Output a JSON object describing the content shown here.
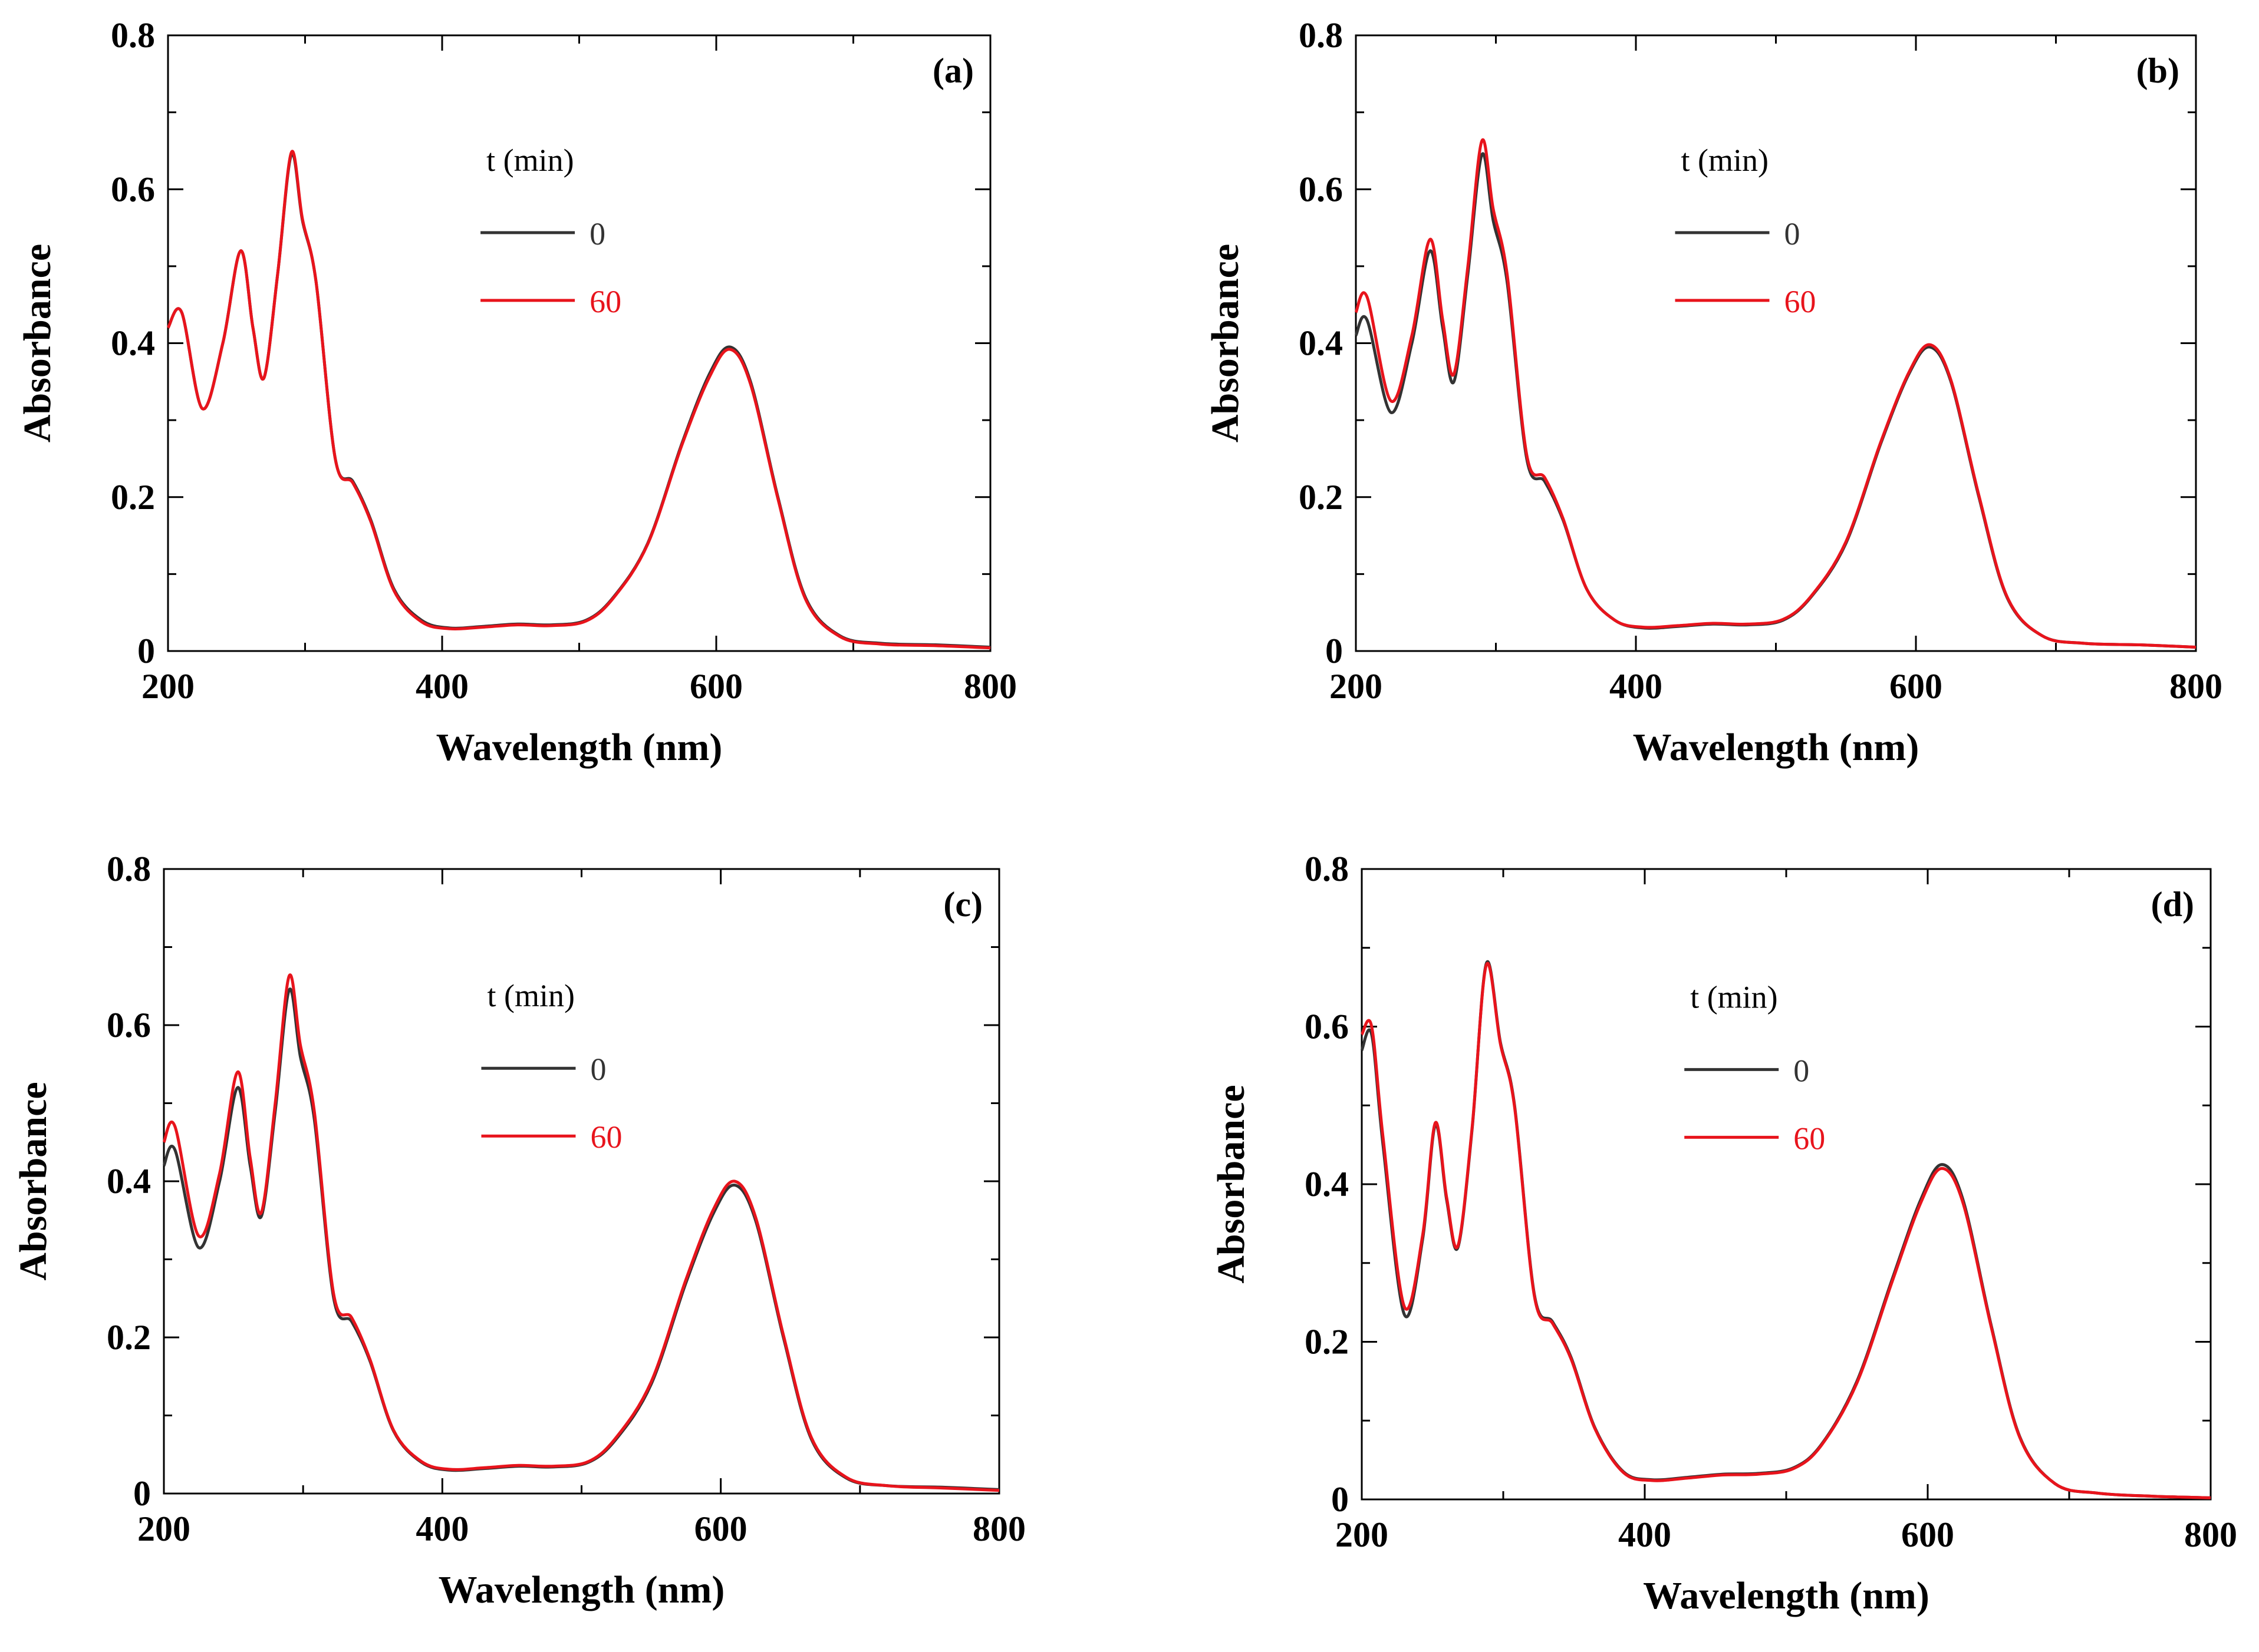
{
  "chart_data": [
    {
      "type": "line",
      "panel_label": "(a)",
      "xlabel": "Wavelength (nm)",
      "ylabel": "Absorbance",
      "xlim": [
        200,
        800
      ],
      "ylim": [
        0,
        0.8
      ],
      "xticks": [
        200,
        400,
        600,
        800
      ],
      "xtick_labels": [
        "200",
        "400",
        "600",
        "800"
      ],
      "yticks": [
        0,
        0.2,
        0.4,
        0.6,
        0.8
      ],
      "ytick_labels": [
        "0",
        "0.2",
        "0.4",
        "0.6",
        "0.8"
      ],
      "legend_title": "t (min)",
      "legend_position": "upper-middle",
      "series": [
        {
          "name": "0",
          "color": "#333333",
          "x": [
            200,
            210,
            225,
            240,
            253,
            262,
            270,
            280,
            290,
            298,
            308,
            322,
            335,
            348,
            365,
            385,
            405,
            430,
            455,
            480,
            505,
            525,
            550,
            575,
            595,
            610,
            625,
            645,
            665,
            690,
            720,
            760,
            800
          ],
          "y": [
            0.42,
            0.44,
            0.315,
            0.4,
            0.52,
            0.42,
            0.355,
            0.49,
            0.645,
            0.56,
            0.48,
            0.25,
            0.22,
            0.17,
            0.08,
            0.04,
            0.03,
            0.032,
            0.035,
            0.034,
            0.04,
            0.07,
            0.14,
            0.27,
            0.36,
            0.395,
            0.35,
            0.2,
            0.07,
            0.02,
            0.01,
            0.008,
            0.005
          ]
        },
        {
          "name": "60",
          "color": "#e8141c",
          "x": [
            200,
            210,
            225,
            240,
            253,
            262,
            270,
            280,
            290,
            298,
            308,
            322,
            335,
            348,
            365,
            385,
            405,
            430,
            455,
            480,
            505,
            525,
            550,
            575,
            595,
            610,
            625,
            645,
            665,
            690,
            720,
            760,
            800
          ],
          "y": [
            0.42,
            0.44,
            0.315,
            0.4,
            0.52,
            0.42,
            0.355,
            0.49,
            0.648,
            0.562,
            0.48,
            0.25,
            0.218,
            0.168,
            0.078,
            0.038,
            0.029,
            0.031,
            0.034,
            0.033,
            0.039,
            0.069,
            0.139,
            0.268,
            0.356,
            0.392,
            0.347,
            0.198,
            0.068,
            0.019,
            0.009,
            0.007,
            0.004
          ]
        }
      ]
    },
    {
      "type": "line",
      "panel_label": "(b)",
      "xlabel": "Wavelength (nm)",
      "ylabel": "Absorbance",
      "xlim": [
        200,
        800
      ],
      "ylim": [
        0,
        0.8
      ],
      "xticks": [
        200,
        400,
        600,
        800
      ],
      "xtick_labels": [
        "200",
        "400",
        "600",
        "800"
      ],
      "yticks": [
        0,
        0.2,
        0.4,
        0.6,
        0.8
      ],
      "ytick_labels": [
        "0",
        "0.2",
        "0.4",
        "0.6",
        "0.8"
      ],
      "legend_title": "t (min)",
      "legend_position": "upper-middle",
      "series": [
        {
          "name": "0",
          "color": "#333333",
          "x": [
            200,
            208,
            225,
            240,
            253,
            262,
            270,
            280,
            290,
            298,
            308,
            322,
            335,
            348,
            365,
            385,
            405,
            430,
            455,
            480,
            505,
            525,
            550,
            575,
            595,
            610,
            625,
            645,
            665,
            690,
            720,
            760,
            800
          ],
          "y": [
            0.41,
            0.43,
            0.31,
            0.4,
            0.52,
            0.42,
            0.35,
            0.49,
            0.645,
            0.56,
            0.48,
            0.25,
            0.22,
            0.17,
            0.08,
            0.04,
            0.03,
            0.032,
            0.035,
            0.034,
            0.04,
            0.07,
            0.14,
            0.27,
            0.36,
            0.395,
            0.35,
            0.2,
            0.07,
            0.02,
            0.01,
            0.008,
            0.005
          ]
        },
        {
          "name": "60",
          "color": "#e8141c",
          "x": [
            200,
            208,
            225,
            240,
            253,
            262,
            270,
            280,
            290,
            298,
            308,
            322,
            335,
            348,
            365,
            385,
            405,
            430,
            455,
            480,
            505,
            525,
            550,
            575,
            595,
            610,
            625,
            645,
            665,
            690,
            720,
            760,
            800
          ],
          "y": [
            0.44,
            0.46,
            0.325,
            0.41,
            0.535,
            0.43,
            0.36,
            0.5,
            0.663,
            0.575,
            0.49,
            0.255,
            0.225,
            0.172,
            0.08,
            0.04,
            0.031,
            0.033,
            0.036,
            0.035,
            0.041,
            0.071,
            0.142,
            0.272,
            0.362,
            0.398,
            0.352,
            0.202,
            0.071,
            0.02,
            0.01,
            0.008,
            0.005
          ]
        }
      ]
    },
    {
      "type": "line",
      "panel_label": "(c)",
      "xlabel": "Wavelength (nm)",
      "ylabel": "Absorbance",
      "xlim": [
        200,
        800
      ],
      "ylim": [
        0,
        0.8
      ],
      "xticks": [
        200,
        400,
        600,
        800
      ],
      "xtick_labels": [
        "200",
        "400",
        "600",
        "800"
      ],
      "yticks": [
        0,
        0.2,
        0.4,
        0.6,
        0.8
      ],
      "ytick_labels": [
        "0",
        "0.2",
        "0.4",
        "0.6",
        "0.8"
      ],
      "legend_title": "t (min)",
      "legend_position": "upper-middle",
      "series": [
        {
          "name": "0",
          "color": "#333333",
          "x": [
            200,
            208,
            225,
            240,
            253,
            262,
            270,
            280,
            290,
            298,
            308,
            322,
            335,
            348,
            365,
            385,
            405,
            430,
            455,
            480,
            505,
            525,
            550,
            575,
            595,
            610,
            625,
            645,
            665,
            690,
            720,
            760,
            800
          ],
          "y": [
            0.42,
            0.44,
            0.315,
            0.4,
            0.52,
            0.42,
            0.355,
            0.49,
            0.645,
            0.56,
            0.48,
            0.25,
            0.22,
            0.17,
            0.08,
            0.04,
            0.03,
            0.032,
            0.035,
            0.034,
            0.04,
            0.07,
            0.14,
            0.27,
            0.36,
            0.395,
            0.35,
            0.2,
            0.07,
            0.02,
            0.01,
            0.008,
            0.005
          ]
        },
        {
          "name": "60",
          "color": "#e8141c",
          "x": [
            200,
            208,
            225,
            240,
            253,
            262,
            270,
            280,
            290,
            298,
            308,
            322,
            335,
            348,
            365,
            385,
            405,
            430,
            455,
            480,
            505,
            525,
            550,
            575,
            595,
            610,
            625,
            645,
            665,
            690,
            720,
            760,
            800
          ],
          "y": [
            0.45,
            0.47,
            0.33,
            0.41,
            0.54,
            0.43,
            0.36,
            0.5,
            0.663,
            0.575,
            0.49,
            0.255,
            0.225,
            0.172,
            0.081,
            0.041,
            0.031,
            0.033,
            0.036,
            0.035,
            0.041,
            0.072,
            0.143,
            0.274,
            0.365,
            0.4,
            0.354,
            0.203,
            0.072,
            0.021,
            0.01,
            0.007,
            0.004
          ]
        }
      ]
    },
    {
      "type": "line",
      "panel_label": "(d)",
      "xlabel": "Wavelength (nm)",
      "ylabel": "Absorbance",
      "xlim": [
        200,
        800
      ],
      "ylim": [
        0,
        0.8
      ],
      "xticks": [
        200,
        400,
        600,
        800
      ],
      "xtick_labels": [
        "200",
        "400",
        "600",
        "800"
      ],
      "yticks": [
        0,
        0.2,
        0.4,
        0.6,
        0.8
      ],
      "ytick_labels": [
        "0",
        "0.2",
        "0.4",
        "0.6",
        "0.8"
      ],
      "legend_title": "t (min)",
      "legend_position": "upper-middle",
      "series": [
        {
          "name": "0",
          "color": "#333333",
          "x": [
            200,
            207,
            215,
            230,
            243,
            252,
            260,
            268,
            278,
            288,
            298,
            308,
            322,
            335,
            348,
            365,
            385,
            405,
            430,
            455,
            480,
            505,
            525,
            550,
            575,
            595,
            610,
            625,
            645,
            665,
            690,
            720,
            760,
            800
          ],
          "y": [
            0.57,
            0.59,
            0.45,
            0.235,
            0.33,
            0.475,
            0.38,
            0.32,
            0.47,
            0.68,
            0.58,
            0.5,
            0.26,
            0.225,
            0.18,
            0.09,
            0.035,
            0.025,
            0.028,
            0.032,
            0.033,
            0.04,
            0.07,
            0.15,
            0.28,
            0.38,
            0.425,
            0.38,
            0.22,
            0.08,
            0.02,
            0.008,
            0.004,
            0.002
          ]
        },
        {
          "name": "60",
          "color": "#e8141c",
          "x": [
            200,
            207,
            215,
            230,
            243,
            252,
            260,
            268,
            278,
            288,
            298,
            308,
            322,
            335,
            348,
            365,
            385,
            405,
            430,
            455,
            480,
            505,
            525,
            550,
            575,
            595,
            610,
            625,
            645,
            665,
            690,
            720,
            760,
            800
          ],
          "y": [
            0.59,
            0.6,
            0.46,
            0.245,
            0.335,
            0.478,
            0.383,
            0.322,
            0.472,
            0.678,
            0.578,
            0.498,
            0.258,
            0.223,
            0.178,
            0.089,
            0.034,
            0.024,
            0.027,
            0.031,
            0.032,
            0.039,
            0.069,
            0.148,
            0.277,
            0.376,
            0.42,
            0.376,
            0.218,
            0.079,
            0.02,
            0.008,
            0.004,
            0.002
          ]
        }
      ]
    }
  ]
}
